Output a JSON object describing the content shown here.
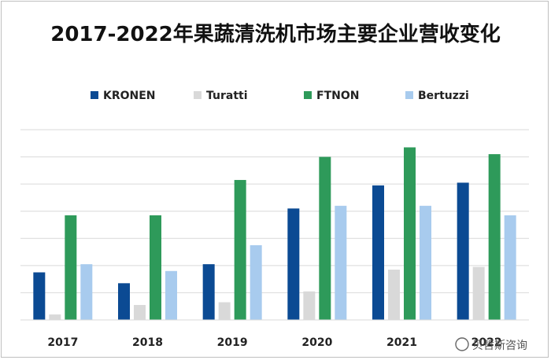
{
  "chart_data": {
    "type": "bar",
    "title": "2017-2022年果蔬清洗机市场主要企业营收变化",
    "categories": [
      "2017",
      "2018",
      "2019",
      "2020",
      "2021",
      "2022"
    ],
    "series": [
      {
        "name": "KRONEN",
        "color": "#0b4a93",
        "values": [
          35,
          27,
          41,
          82,
          99,
          101
        ]
      },
      {
        "name": "Turatti",
        "color": "#d9d9d9",
        "values": [
          4,
          11,
          13,
          21,
          37,
          39
        ]
      },
      {
        "name": "FTNON",
        "color": "#2e9a5a",
        "values": [
          77,
          77,
          103,
          120,
          127,
          122
        ]
      },
      {
        "name": "Bertuzzi",
        "color": "#a8cbee",
        "values": [
          41,
          36,
          55,
          84,
          84,
          77
        ]
      }
    ],
    "ylim": [
      0,
      140
    ],
    "grid": true,
    "legend": "top",
    "xlabel": "",
    "ylabel": ""
  },
  "watermark": {
    "text": "贝哲斯咨询"
  }
}
